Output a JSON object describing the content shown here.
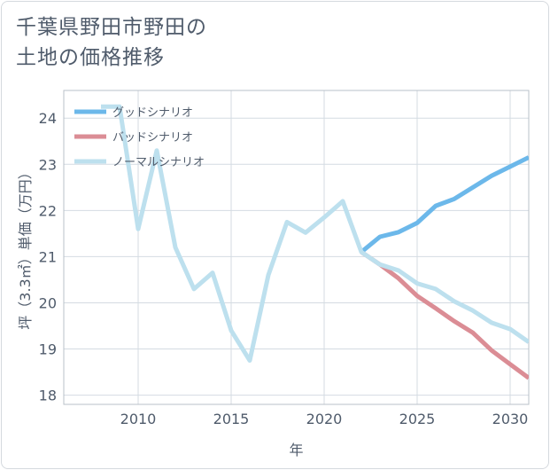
{
  "chart_data": {
    "type": "line",
    "title": "千葉県野田市野田の\n土地の価格推移",
    "xlabel": "年",
    "ylabel": "坪（3.3㎡）単価（万円）",
    "xlim": [
      2006,
      2031
    ],
    "ylim": [
      17.8,
      24.6
    ],
    "x_ticks": [
      2010,
      2015,
      2020,
      2025,
      2030
    ],
    "y_ticks": [
      18,
      19,
      20,
      21,
      22,
      23,
      24
    ],
    "grid": true,
    "legend_position": "top-left",
    "series": [
      {
        "name": "グッドシナリオ",
        "color": "#6cb8ea",
        "x": [
          2022,
          2023,
          2024,
          2025,
          2026,
          2027,
          2028,
          2029,
          2030,
          2031
        ],
        "values": [
          21.1,
          21.43,
          21.53,
          21.73,
          22.1,
          22.25,
          22.5,
          22.75,
          22.95,
          23.15
        ]
      },
      {
        "name": "バッドシナリオ",
        "color": "#db8d95",
        "x": [
          2022,
          2023,
          2024,
          2025,
          2026,
          2027,
          2028,
          2029,
          2030,
          2031
        ],
        "values": [
          21.1,
          20.83,
          20.53,
          20.15,
          19.88,
          19.6,
          19.35,
          18.97,
          18.67,
          18.37
        ]
      },
      {
        "name": "ノーマルシナリオ",
        "color": "#bde0ee",
        "x": [
          2008,
          2009,
          2010,
          2011,
          2012,
          2013,
          2014,
          2015,
          2016,
          2017,
          2018,
          2019,
          2020,
          2021,
          2022,
          2023,
          2024,
          2025,
          2026,
          2027,
          2028,
          2029,
          2030,
          2031
        ],
        "values": [
          24.25,
          24.25,
          21.6,
          23.3,
          21.2,
          20.3,
          20.65,
          19.4,
          18.75,
          20.6,
          21.75,
          21.52,
          21.85,
          22.2,
          21.1,
          20.83,
          20.7,
          20.42,
          20.3,
          20.03,
          19.83,
          19.57,
          19.43,
          19.15
        ]
      }
    ]
  }
}
